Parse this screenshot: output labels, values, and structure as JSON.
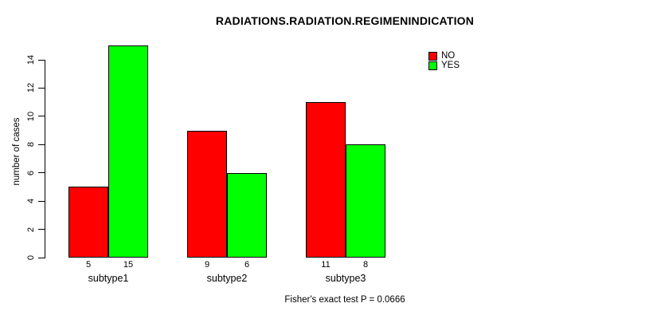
{
  "chart_data": {
    "type": "bar",
    "title": "RADIATIONS.RADIATION.REGIMENINDICATION",
    "xlabel": "",
    "ylabel": "number of cases",
    "categories": [
      "subtype1",
      "subtype2",
      "subtype3"
    ],
    "series": [
      {
        "name": "NO",
        "color": "#ff0000",
        "values": [
          5,
          9,
          11
        ]
      },
      {
        "name": "YES",
        "color": "#00ff00",
        "values": [
          15,
          6,
          8
        ]
      }
    ],
    "bar_value_labels_shown": true,
    "yticks": [
      0,
      2,
      4,
      6,
      8,
      10,
      12,
      14
    ],
    "ylim": [
      0,
      15
    ],
    "grid": false,
    "legend_position": "top-right",
    "annotation": "Fisher's exact test P = 0.0666"
  }
}
